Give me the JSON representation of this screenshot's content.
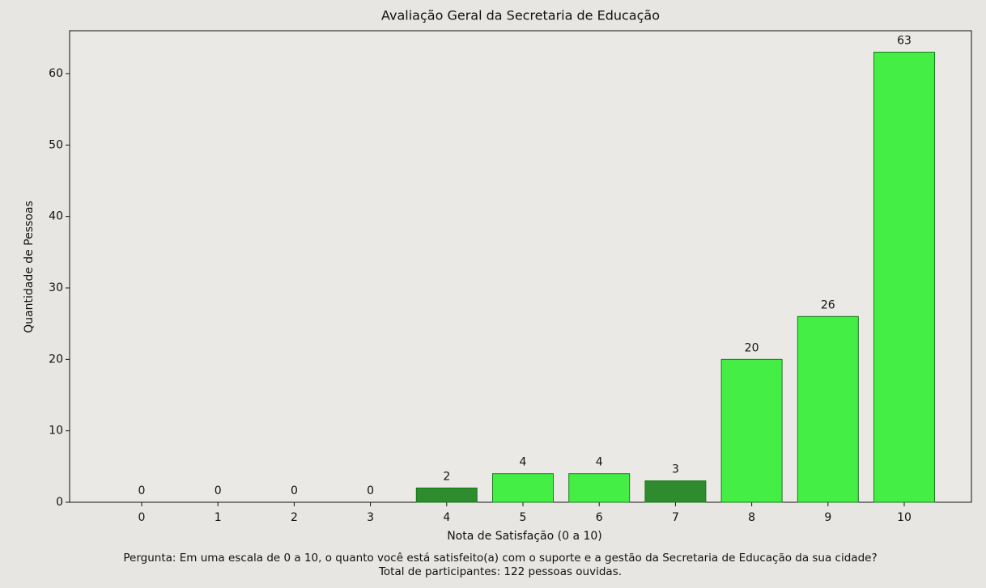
{
  "chart_data": {
    "type": "bar",
    "title": "Avaliação Geral da Secretaria de Educação",
    "xlabel": "Nota de Satisfação (0 a 10)",
    "ylabel": "Quantidade de Pessoas",
    "categories": [
      "0",
      "1",
      "2",
      "3",
      "4",
      "5",
      "6",
      "7",
      "8",
      "9",
      "10"
    ],
    "values": [
      0,
      0,
      0,
      0,
      2,
      4,
      4,
      3,
      20,
      26,
      63
    ],
    "colors": [
      "#44ee44",
      "#44ee44",
      "#44ee44",
      "#44ee44",
      "#2e8b2e",
      "#44ee44",
      "#44ee44",
      "#2e8b2e",
      "#44ee44",
      "#44ee44",
      "#44ee44"
    ],
    "ylim": [
      0,
      66
    ],
    "yticks": [
      0,
      10,
      20,
      30,
      40,
      50,
      60
    ],
    "notes": [
      "Pergunta: Em uma escala de 0 a 10, o quanto você está satisfeito(a) com o suporte e a gestão da Secretaria de Educação da sua cidade?",
      "Total de participantes: 122 pessoas ouvidas."
    ]
  }
}
